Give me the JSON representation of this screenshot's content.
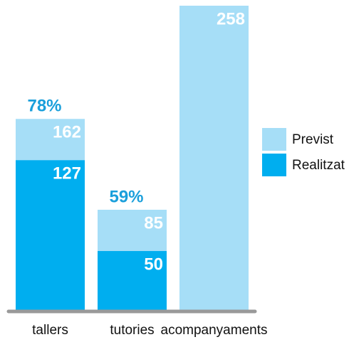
{
  "chart_data": {
    "type": "bar",
    "categories": [
      "tallers",
      "tutories",
      "acompanyaments"
    ],
    "series": [
      {
        "name": "Previst",
        "color": "#a6def7",
        "values": [
          162,
          85,
          258
        ]
      },
      {
        "name": "Realitzat",
        "color": "#00aeef",
        "values": [
          127,
          50,
          null
        ]
      }
    ],
    "rate_labels": [
      "78%",
      "59%",
      null
    ],
    "overlap": true
  }
}
